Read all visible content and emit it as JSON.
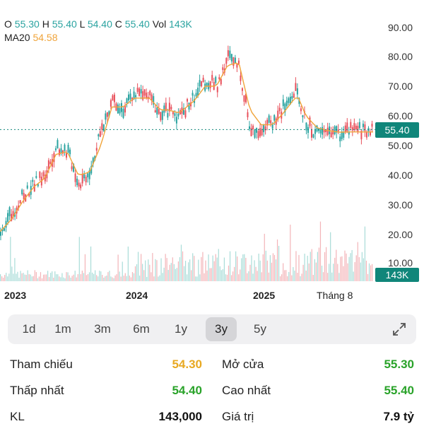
{
  "ohlc": {
    "o_label": "O",
    "o_value": "55.30",
    "h_label": "H",
    "h_value": "55.40",
    "l_label": "L",
    "l_value": "54.40",
    "c_label": "C",
    "c_value": "55.40",
    "vol_label": "Vol",
    "vol_value": "143K"
  },
  "ma": {
    "label": "MA20",
    "value": "54.58"
  },
  "colors": {
    "up": "#2aa3a0",
    "down": "#e8505b",
    "ma": "#f0a43a",
    "accent": "#10867a"
  },
  "y_ticks": [
    "90.00",
    "80.00",
    "70.00",
    "60.00",
    "50.00",
    "40.00",
    "30.00",
    "20.00",
    "10.00"
  ],
  "x_ticks": [
    "2023",
    "2024",
    "2025",
    "Tháng 8"
  ],
  "current_price": "55.40",
  "current_volume": "143K",
  "chart_data": {
    "type": "line",
    "ylim": [
      0,
      93
    ],
    "price_x": [
      0,
      0.03,
      0.06,
      0.09,
      0.12,
      0.15,
      0.18,
      0.21,
      0.24,
      0.27,
      0.3,
      0.33,
      0.36,
      0.4,
      0.43,
      0.45,
      0.48,
      0.52,
      0.55,
      0.58,
      0.61,
      0.64,
      0.67,
      0.7,
      0.73,
      0.76,
      0.79,
      0.8,
      0.82,
      0.85,
      0.88,
      0.91,
      0.94,
      0.97,
      1.0
    ],
    "price_y": [
      22,
      27,
      33,
      37,
      40,
      50,
      48,
      37,
      42,
      55,
      66,
      62,
      68,
      66,
      60,
      62,
      60,
      67,
      72,
      70,
      80,
      76,
      55,
      56,
      58,
      63,
      68,
      65,
      57,
      54,
      55,
      54,
      55,
      55.4,
      55.4
    ],
    "ma_y": [
      21,
      25,
      31,
      36,
      39,
      47,
      48,
      40,
      41,
      50,
      63,
      63,
      66,
      66,
      62,
      62,
      61,
      65,
      70,
      70,
      77,
      78,
      62,
      57,
      57,
      61,
      66,
      66,
      60,
      56,
      55,
      54.5,
      54.6,
      54.58,
      54.58
    ],
    "dotted_line_value": 55.4
  },
  "ranges": [
    "1d",
    "1m",
    "3m",
    "6m",
    "1y",
    "3y",
    "5y"
  ],
  "active_range": "3y",
  "stats": {
    "ref_label": "Tham chiếu",
    "ref_value": "54.30",
    "open_label": "Mở cửa",
    "open_value": "55.30",
    "low_label": "Thấp nhất",
    "low_value": "54.40",
    "high_label": "Cao nhất",
    "high_value": "55.40",
    "vol_label": "KL",
    "vol_value": "143,000",
    "value_label": "Giá trị",
    "value_value": "7.9 tỷ"
  }
}
